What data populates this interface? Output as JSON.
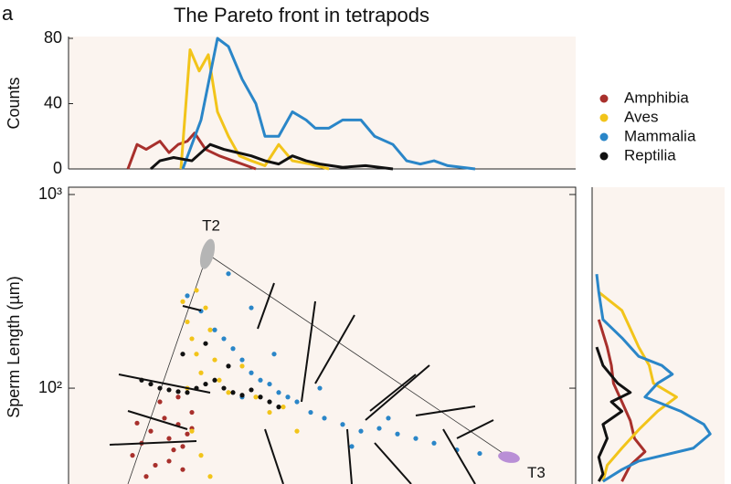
{
  "chart_data": [
    {
      "type": "line",
      "title": "The Pareto front in tetrapods",
      "panel_label": "a",
      "ylabel": "Counts",
      "xlim": [
        0,
        111
      ],
      "ylim": [
        0,
        80
      ],
      "yticks": [
        0,
        40,
        80
      ],
      "legend": "right",
      "series": [
        {
          "name": "Amphibia",
          "color": "#a8302c",
          "x": [
            13,
            15,
            17,
            20,
            22,
            24,
            26,
            27.6,
            30,
            33,
            36,
            38,
            41
          ],
          "values": [
            0,
            15,
            12,
            17,
            10,
            15,
            17,
            22,
            12,
            8,
            5,
            3,
            0
          ]
        },
        {
          "name": "Aves",
          "color": "#f2c41a",
          "x": [
            24.6,
            26.6,
            28.6,
            30.6,
            32.6,
            35,
            37.4,
            40,
            43,
            46,
            49,
            53,
            57
          ],
          "values": [
            0,
            73,
            60,
            70,
            35,
            20,
            8,
            5,
            2,
            15,
            5,
            3,
            0
          ]
        },
        {
          "name": "Mammalia",
          "color": "#2a86c8",
          "x": [
            25,
            29,
            32.6,
            35,
            38,
            41,
            43,
            46,
            49,
            52,
            54,
            57,
            60,
            64,
            67,
            71,
            74,
            77,
            80,
            83,
            89
          ],
          "values": [
            0,
            30,
            80,
            75,
            55,
            40,
            20,
            20,
            35,
            30,
            25,
            25,
            30,
            30,
            20,
            15,
            5,
            3,
            5,
            2,
            0
          ]
        },
        {
          "name": "Reptilia",
          "color": "#111111",
          "x": [
            18,
            20,
            23,
            27,
            31,
            34,
            37,
            40,
            43,
            46,
            49,
            52,
            55,
            60,
            65,
            71
          ],
          "values": [
            0,
            5,
            7,
            5,
            15,
            12,
            10,
            8,
            5,
            3,
            8,
            5,
            3,
            1,
            2,
            0
          ]
        }
      ]
    },
    {
      "type": "scatter",
      "ylabel": "Sperm Length (µm)",
      "log_y": true,
      "xlim": [
        0,
        111
      ],
      "ylim": [
        32,
        1000
      ],
      "yticks": [
        {
          "value": 100,
          "label": "10²"
        },
        {
          "value": 1000,
          "label": "10³"
        }
      ],
      "archetypes": [
        {
          "label": "T2",
          "x": 30.4,
          "y": 493,
          "color": "#b5b5b5"
        },
        {
          "label": "T3",
          "x": 96.4,
          "y": 44,
          "color": "#b98fd6"
        }
      ],
      "series": [
        {
          "color": "#a8302c",
          "x": [
            14,
            16,
            18,
            19,
            21,
            22,
            23,
            24,
            25,
            26,
            27,
            20,
            17,
            15,
            22,
            25,
            27,
            24
          ],
          "values": [
            45,
            52,
            60,
            40,
            70,
            55,
            48,
            65,
            38,
            58,
            75,
            85,
            35,
            66,
            42,
            50,
            62,
            90
          ]
        },
        {
          "color": "#f2c41a",
          "x": [
            25,
            26,
            27,
            28,
            29,
            30,
            31,
            32,
            33,
            35,
            38,
            41,
            44,
            47,
            50,
            27,
            29,
            31,
            26,
            28
          ],
          "values": [
            280,
            220,
            180,
            150,
            120,
            260,
            200,
            140,
            110,
            95,
            130,
            90,
            75,
            80,
            60,
            60,
            45,
            35,
            100,
            320
          ]
        },
        {
          "color": "#2a86c8",
          "x": [
            26,
            29,
            32,
            34,
            36,
            38,
            40,
            42,
            44,
            46,
            48,
            50,
            53,
            56,
            60,
            64,
            68,
            72,
            76,
            80,
            85,
            90,
            95,
            35,
            40,
            45,
            38,
            55,
            62,
            70
          ],
          "values": [
            300,
            250,
            200,
            180,
            160,
            140,
            120,
            110,
            105,
            95,
            90,
            85,
            75,
            70,
            65,
            60,
            62,
            58,
            55,
            52,
            48,
            46,
            44,
            390,
            260,
            150,
            90,
            100,
            50,
            70
          ]
        },
        {
          "color": "#111111",
          "x": [
            16,
            18,
            20,
            22,
            24,
            26,
            28,
            30,
            32,
            34,
            36,
            38,
            40,
            42,
            44,
            46,
            25,
            30,
            35
          ],
          "values": [
            110,
            105,
            100,
            98,
            96,
            95,
            100,
            105,
            110,
            100,
            95,
            92,
            98,
            90,
            85,
            80,
            150,
            170,
            130
          ]
        }
      ]
    },
    {
      "type": "line",
      "orientation": "horizontal",
      "log_y": true,
      "xlim": [
        0,
        60
      ],
      "ylim": [
        32,
        1000
      ],
      "series": [
        {
          "color": "#a8302c",
          "y": [
            226,
            163,
            131,
            106,
            85,
            68,
            55,
            47,
            40,
            33
          ],
          "values": [
            1,
            5,
            7,
            8,
            12,
            16,
            18,
            23,
            16,
            12
          ]
        },
        {
          "color": "#f2c41a",
          "y": [
            313,
            252,
            203,
            163,
            131,
            106,
            90,
            76,
            61,
            49,
            40,
            33
          ],
          "values": [
            1,
            12,
            16,
            20,
            25,
            27,
            38,
            29,
            20,
            12,
            5,
            3
          ]
        },
        {
          "color": "#2a86c8",
          "y": [
            388,
            313,
            226,
            182,
            146,
            131,
            118,
            106,
            90,
            76,
            65,
            58,
            49,
            42,
            38,
            33
          ],
          "values": [
            0,
            1,
            3,
            12,
            20,
            31,
            36,
            29,
            23,
            40,
            51,
            54,
            46,
            20,
            12,
            3
          ]
        },
        {
          "color": "#111111",
          "y": [
            163,
            131,
            106,
            95,
            85,
            76,
            65,
            55,
            44,
            36,
            33
          ],
          "values": [
            0,
            3,
            10,
            16,
            7,
            12,
            3,
            5,
            1,
            3,
            1
          ]
        }
      ]
    }
  ]
}
